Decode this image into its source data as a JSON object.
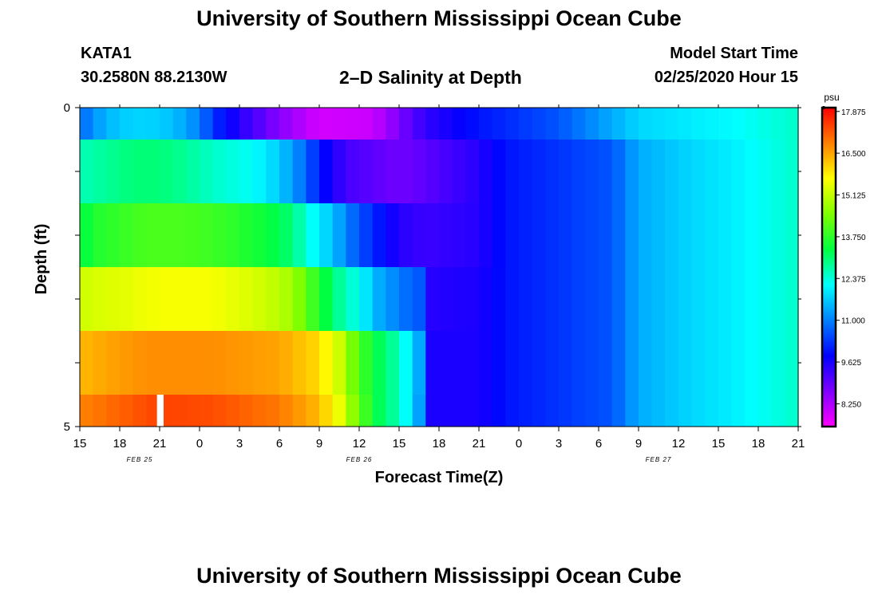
{
  "header": {
    "title": "University of Southern Mississippi Ocean Cube",
    "station": "KATA1",
    "coordinates": "30.2580N 88.2130W",
    "chart_title": "2–D Salinity at Depth",
    "model_label": "Model Start Time",
    "model_time": "02/25/2020 Hour 15"
  },
  "footer": {
    "title": "University of Southern Mississippi Ocean Cube"
  },
  "chart_data": {
    "type": "heatmap",
    "title": "2–D Salinity at Depth",
    "xlabel": "Forecast Time(Z)",
    "ylabel": "Depth (ft)",
    "x_tick_labels": [
      "15",
      "18",
      "21",
      "0",
      "3",
      "6",
      "9",
      "12",
      "15",
      "18",
      "21",
      "0",
      "3",
      "6",
      "9",
      "12",
      "15",
      "18",
      "21"
    ],
    "date_labels": [
      {
        "label": "FEB 25",
        "tick_index": 1.5
      },
      {
        "label": "FEB 26",
        "tick_index": 7
      },
      {
        "label": "FEB 27",
        "tick_index": 14.5
      }
    ],
    "y_tick_labels": [
      "0",
      "5"
    ],
    "ylim": [
      0,
      5
    ],
    "xlim_hours": [
      0,
      54
    ],
    "x_units": "forecast hours from 02/25/2020 15Z",
    "colorbar": {
      "unit": "psu",
      "range": [
        7.5,
        18.0
      ],
      "ticks": [
        "17.875",
        "16.500",
        "15.125",
        "13.750",
        "12.375",
        "11.000",
        "9.625",
        "8.250"
      ],
      "colors": [
        "#ff00ff",
        "#8000ff",
        "#0000ff",
        "#0080ff",
        "#00ffff",
        "#00ff40",
        "#80ff00",
        "#ffff00",
        "#ff8000",
        "#ff0000"
      ]
    },
    "layers": [
      {
        "depth_top": 0,
        "depth_bottom": 0.5,
        "hours": [
          0,
          1,
          3,
          5,
          7,
          9,
          10,
          12,
          15,
          18,
          22,
          26,
          30,
          32,
          36,
          40,
          42,
          46,
          50,
          54
        ],
        "values": [
          10.7,
          11.2,
          11.7,
          11.8,
          11.6,
          11.0,
          10.3,
          9.5,
          8.6,
          7.9,
          8.0,
          9.4,
          10.0,
          10.2,
          10.6,
          11.4,
          11.8,
          12.0,
          12.2,
          12.5
        ]
      },
      {
        "depth_top": 0.5,
        "depth_bottom": 1.5,
        "hours": [
          0,
          2,
          4,
          6,
          8,
          10,
          13,
          15,
          16.5,
          17.5,
          18,
          20,
          24,
          26,
          30,
          32,
          36,
          40,
          42,
          46,
          50,
          54
        ],
        "values": [
          12.6,
          12.8,
          13.0,
          13.0,
          12.8,
          12.5,
          12.2,
          11.7,
          11.0,
          10.4,
          10.0,
          9.2,
          8.8,
          9.0,
          9.5,
          10.0,
          10.3,
          10.6,
          11.4,
          11.8,
          12.1,
          12.5
        ]
      },
      {
        "depth_top": 1.5,
        "depth_bottom": 2.5,
        "hours": [
          0,
          1,
          3,
          5,
          8,
          11,
          14,
          16,
          17,
          19,
          20.5,
          22,
          24,
          26,
          30,
          32,
          36,
          40,
          42,
          46,
          50,
          54
        ],
        "values": [
          13.2,
          13.6,
          13.8,
          14.0,
          14.0,
          13.8,
          13.4,
          13.0,
          12.4,
          11.6,
          10.8,
          10.2,
          9.5,
          9.3,
          9.5,
          10.0,
          10.3,
          10.6,
          11.4,
          11.8,
          12.1,
          12.5
        ]
      },
      {
        "depth_top": 2.5,
        "depth_bottom": 3.5,
        "hours": [
          0,
          1,
          3,
          6,
          10,
          14,
          16,
          17,
          18,
          19.5,
          21,
          22.5,
          25,
          25.8,
          26.5,
          30,
          32,
          36,
          40,
          42,
          46,
          50,
          54
        ],
        "values": [
          15.2,
          15.3,
          15.4,
          15.6,
          15.6,
          15.2,
          14.8,
          14.2,
          13.6,
          12.8,
          12.2,
          11.4,
          10.7,
          10.6,
          9.5,
          9.6,
          10.0,
          10.3,
          10.6,
          11.4,
          11.8,
          12.1,
          12.5
        ]
      },
      {
        "depth_top": 3.5,
        "depth_bottom": 4.5,
        "hours": [
          0,
          2,
          5,
          10,
          15,
          18,
          19.5,
          21,
          22.5,
          24,
          25,
          25.6,
          26,
          26.5,
          30,
          32,
          36,
          40,
          42,
          46,
          50,
          54
        ],
        "values": [
          16.3,
          16.5,
          16.7,
          16.7,
          16.5,
          16.0,
          15.2,
          14.0,
          13.2,
          12.6,
          11.8,
          11.3,
          10.0,
          9.6,
          9.6,
          10.0,
          10.3,
          10.6,
          11.4,
          11.8,
          12.1,
          12.5
        ]
      },
      {
        "depth_top": 4.5,
        "depth_bottom": 5,
        "hours": [
          0,
          2,
          4,
          6,
          10,
          15,
          18,
          19.5,
          21,
          22.5,
          24,
          25,
          25.6,
          26,
          26.5,
          30,
          32,
          36,
          40,
          42,
          46,
          50,
          54
        ],
        "values": [
          16.8,
          17.0,
          17.2,
          17.4,
          17.3,
          16.9,
          16.3,
          15.5,
          14.2,
          13.2,
          12.6,
          11.8,
          11.2,
          10.2,
          9.6,
          9.6,
          10.0,
          10.3,
          10.6,
          11.4,
          11.8,
          12.1,
          12.5
        ]
      }
    ],
    "missing_cell": {
      "depth_top": 4.5,
      "depth_bottom": 5,
      "hour_start": 5.8,
      "hour_end": 6.3
    }
  }
}
